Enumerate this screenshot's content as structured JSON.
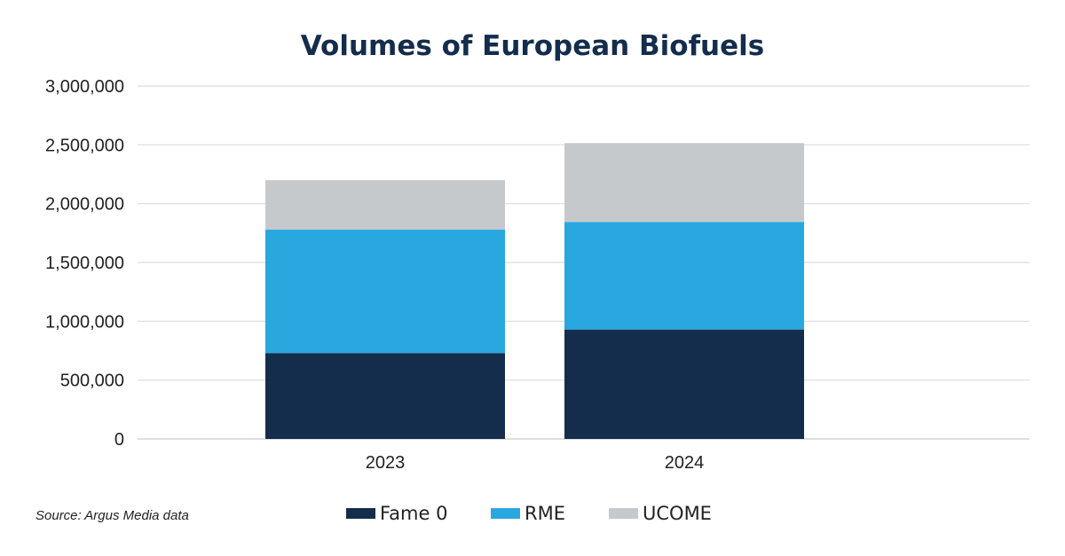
{
  "chart_data": {
    "type": "bar",
    "stacked": true,
    "title": "Volumes of European Biofuels",
    "xlabel": "",
    "ylabel": "",
    "categories": [
      "2023",
      "2024"
    ],
    "series": [
      {
        "name": "Fame 0",
        "values": [
          730000,
          930000
        ],
        "color": "#142d4c"
      },
      {
        "name": "RME",
        "values": [
          1050000,
          915000
        ],
        "color": "#29a8e0"
      },
      {
        "name": "UCOME",
        "values": [
          420000,
          670000
        ],
        "color": "#c5c9cc"
      }
    ],
    "ylim": [
      0,
      3000000
    ],
    "yticks": [
      "0",
      "500,000",
      "1,000,000",
      "1,500,000",
      "2,000,000",
      "2,500,000",
      "3,000,000"
    ],
    "grid": true,
    "legend_position": "bottom"
  },
  "source": "Source: Argus Media data",
  "colors": {
    "title": "#142d4c",
    "text": "#222222",
    "grid": "#d9dde1"
  }
}
